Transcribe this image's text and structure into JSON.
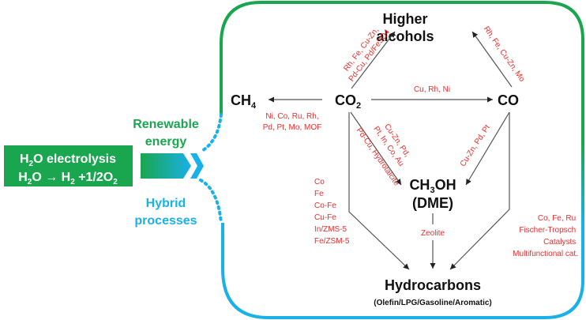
{
  "colors": {
    "green": "#1aa64e",
    "blue": "#1ab0e8",
    "catalyst_red": "#ee2b2b"
  },
  "source": {
    "line1": {
      "base": "H",
      "sub": "2",
      "rest": "O electrolysis"
    },
    "line2": {
      "a": "H",
      "a_sub": "2",
      "b": "O → H",
      "b_sub": "2",
      "c": " +1/2O",
      "c_sub": "2"
    }
  },
  "paths": {
    "renewable": [
      "Renewable",
      "energy"
    ],
    "hybrid": [
      "Hybrid",
      "processes"
    ]
  },
  "nodes": {
    "higher_alcohols": [
      "Higher",
      "alcohols"
    ],
    "ch4": {
      "base": "CH",
      "sub": "4"
    },
    "co2": {
      "base": "CO",
      "sub": "2"
    },
    "co": "CO",
    "methanol": {
      "a": "CH",
      "sub": "3",
      "b": "OH",
      "line2": "(DME)"
    },
    "hydrocarbons": "Hydrocarbons",
    "hydrocarbons_sub": "(Olefin/LPG/Gasoline/Aromatic)"
  },
  "catalysts": {
    "co2_to_ch4": [
      "Ni, Co, Ru, Rh,",
      "Pd, Pt, Mo, MOF"
    ],
    "co2_to_co": "Cu, Rh, Ni",
    "co2_to_alcohols": [
      "Rh, Fe, Cu-Zn,",
      "Pd-Cu, Pd/Fe3O4"
    ],
    "co_to_alcohols": "Rh, Fe, Cu-Zn, Mo",
    "co2_to_methanol": [
      "Cu-Zn, Pd,",
      "Pt, In, Co, Au",
      "Pd-Cu, Hydrotalcite"
    ],
    "co_to_methanol": "Cu-Zn, Pd, Pt",
    "methanol_to_hc": "Zeolite",
    "co2_to_hc": [
      "Co",
      "Fe",
      "Co-Fe",
      "Cu-Fe",
      "In/ZMS-5",
      "Fe/ZSM-5"
    ],
    "co_to_hc": [
      "Co, Fe, Ru",
      "Fischer-Tropsch",
      "Catalysts",
      "Multifunctional cat."
    ]
  }
}
